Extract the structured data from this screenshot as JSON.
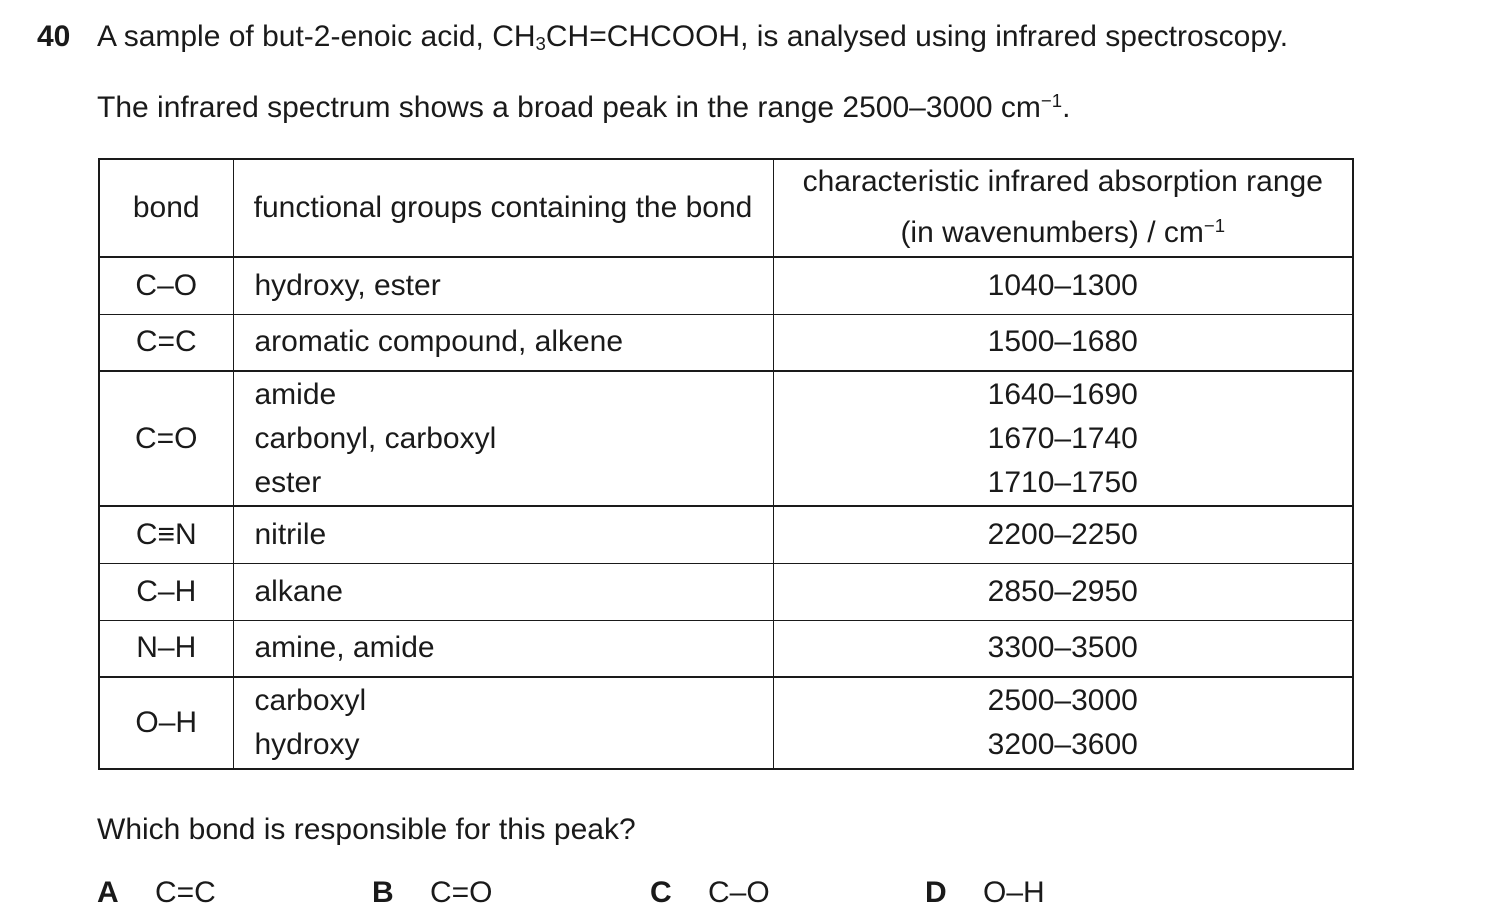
{
  "question": {
    "number": "40",
    "intro": {
      "pre_sub": "A sample of but-2-enoic acid, CH",
      "sub": "3",
      "post_sub": "CH=CHCOOH, is analysed using infrared spectroscopy."
    },
    "detail": {
      "pre_sup": "The infrared spectrum shows a broad peak in the range 2500–3000 cm",
      "sup": "−1",
      "post_sup": "."
    },
    "prompt": "Which bond is responsible for this peak?"
  },
  "table": {
    "headers": {
      "bond": "bond",
      "groups": "functional groups containing the bond",
      "range_line1": "characteristic infrared absorption range",
      "range_line2_pre": "(in wavenumbers) / cm",
      "range_sup": "−1"
    },
    "rows": [
      {
        "bond": "C–O",
        "groups": [
          "hydroxy, ester"
        ],
        "ranges": [
          "1040–1300"
        ]
      },
      {
        "bond": "C=C",
        "groups": [
          "aromatic compound, alkene"
        ],
        "ranges": [
          "1500–1680"
        ]
      },
      {
        "bond": "C=O",
        "groups": [
          "amide",
          "carbonyl, carboxyl",
          "ester"
        ],
        "ranges": [
          "1640–1690",
          "1670–1740",
          "1710–1750"
        ]
      },
      {
        "bond": "C≡N",
        "groups": [
          "nitrile"
        ],
        "ranges": [
          "2200–2250"
        ]
      },
      {
        "bond": "C–H",
        "groups": [
          "alkane"
        ],
        "ranges": [
          "2850–2950"
        ]
      },
      {
        "bond": "N–H",
        "groups": [
          "amine, amide"
        ],
        "ranges": [
          "3300–3500"
        ]
      },
      {
        "bond": "O–H",
        "groups": [
          "carboxyl",
          "hydroxy"
        ],
        "ranges": [
          "2500–3000",
          "3200–3600"
        ]
      }
    ]
  },
  "options": [
    {
      "label": "A",
      "value": "C=C"
    },
    {
      "label": "B",
      "value": "C=O"
    },
    {
      "label": "C",
      "value": "C–O"
    },
    {
      "label": "D",
      "value": "O–H"
    }
  ],
  "colors": {
    "text": "#1a1a1a",
    "border": "#1a1a1a",
    "background": "#ffffff"
  }
}
